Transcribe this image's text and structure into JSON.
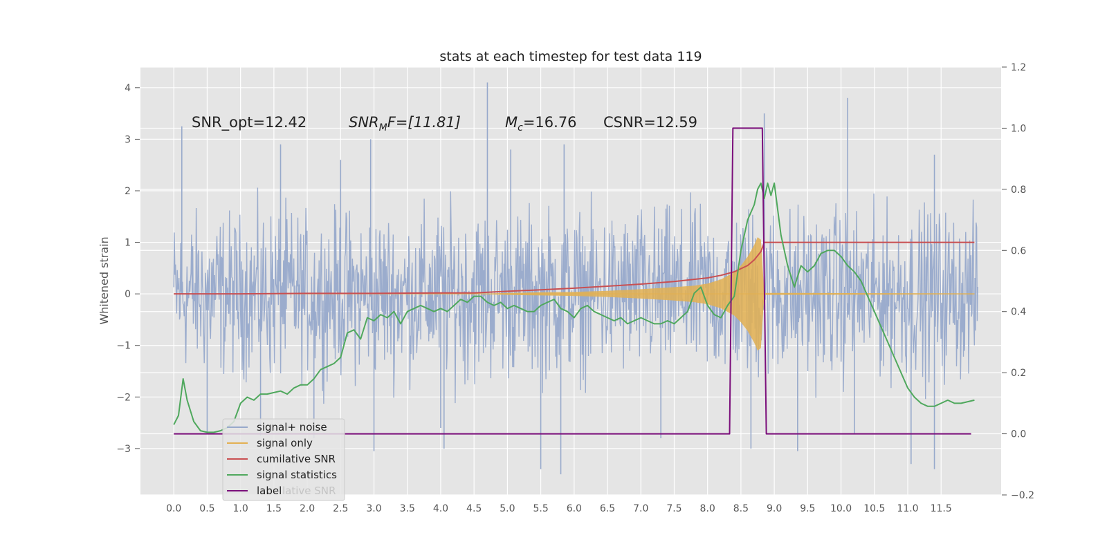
{
  "chart_data": {
    "type": "line",
    "title": "stats at each timestep for test data 119",
    "ylabel": "Whitened strain",
    "xlabel": "",
    "xlim": [
      -0.5,
      12.4
    ],
    "ylim": [
      -3.9,
      4.4
    ],
    "y2lim": [
      -0.2,
      1.2
    ],
    "grid": true,
    "x_ticks": [
      "0.0",
      "0.5",
      "1.0",
      "1.5",
      "2.0",
      "2.5",
      "3.0",
      "3.5",
      "4.0",
      "4.5",
      "5.0",
      "5.5",
      "6.0",
      "6.5",
      "7.0",
      "7.5",
      "8.0",
      "8.5",
      "9.0",
      "9.5",
      "10.0",
      "10.5",
      "11.0",
      "11.5"
    ],
    "y_ticks": [
      "4",
      "3",
      "2",
      "1",
      "0",
      "−1",
      "−2",
      "−3"
    ],
    "y2_ticks": [
      "1.2",
      "1.0",
      "0.8",
      "0.6",
      "0.4",
      "0.2",
      "0.0",
      "−0.2"
    ],
    "annotations": {
      "snr_opt": "SNR_opt=12.42",
      "snr_mf_main": "SNR",
      "snr_mf_sub": "M",
      "snr_mf_rest": "F=[11.81]",
      "mc_main": "M",
      "mc_sub": "c",
      "mc_rest": "=16.76",
      "csnr": "CSNR=12.59"
    },
    "legend": {
      "placement": "lower-left",
      "entries": [
        "signal+ noise",
        "signal only",
        "cumilative SNR",
        "signal statistics",
        "label"
      ],
      "ghost_text": "lative SNR"
    },
    "colors": {
      "noise": "#97a9cb",
      "signal": "#e3b051",
      "cumulative_snr": "#c94f51",
      "statistics": "#4fa85d",
      "label": "#7b0f7b",
      "axes_bg": "#e5e5e5",
      "grid": "#ffffff"
    },
    "series": [
      {
        "name": "signal+ noise",
        "axis": "left",
        "description_only": "dense whitened noise between about -2.5 and 2.5 with spikes up to 4.1 and down to -3.4",
        "envelope_upper": [
          [
            0,
            2.1
          ],
          [
            0.5,
            2.3
          ],
          [
            1,
            2.2
          ],
          [
            1.5,
            2.4
          ],
          [
            2,
            2.2
          ],
          [
            2.5,
            2.3
          ],
          [
            3,
            2.4
          ],
          [
            3.5,
            2.3
          ],
          [
            4,
            2.4
          ],
          [
            4.5,
            2.5
          ],
          [
            5,
            2.3
          ],
          [
            5.5,
            2.4
          ],
          [
            6,
            2.3
          ],
          [
            6.5,
            2.3
          ],
          [
            7,
            2.4
          ],
          [
            7.5,
            2.3
          ],
          [
            8,
            2.4
          ],
          [
            8.5,
            2.4
          ],
          [
            9,
            2.5
          ],
          [
            9.5,
            2.4
          ],
          [
            10,
            2.4
          ],
          [
            10.5,
            2.3
          ],
          [
            11,
            2.4
          ],
          [
            11.5,
            2.4
          ],
          [
            12,
            2.2
          ]
        ],
        "spikes": [
          [
            0.12,
            3.25
          ],
          [
            1.6,
            2.9
          ],
          [
            2.5,
            2.6
          ],
          [
            2.95,
            3.0
          ],
          [
            4.7,
            4.1
          ],
          [
            5.05,
            2.8
          ],
          [
            5.85,
            2.9
          ],
          [
            8.85,
            3.5
          ],
          [
            10.1,
            3.8
          ],
          [
            11.4,
            2.7
          ],
          [
            0.5,
            -2.7
          ],
          [
            2.1,
            -2.8
          ],
          [
            3.0,
            -3.05
          ],
          [
            4.05,
            -3.0
          ],
          [
            4.0,
            -2.6
          ],
          [
            5.5,
            -3.4
          ],
          [
            5.8,
            -3.5
          ],
          [
            8.65,
            -3.0
          ],
          [
            9.35,
            -3.05
          ],
          [
            10.2,
            -2.7
          ],
          [
            11.05,
            -3.3
          ],
          [
            11.4,
            -3.4
          ],
          [
            1.3,
            -2.75
          ],
          [
            7.3,
            -2.8
          ]
        ]
      },
      {
        "name": "signal only",
        "axis": "left",
        "envelope": [
          [
            0,
            0
          ],
          [
            4.5,
            0
          ],
          [
            5,
            0.02
          ],
          [
            5.5,
            0.03
          ],
          [
            6,
            0.04
          ],
          [
            6.5,
            0.06
          ],
          [
            7,
            0.09
          ],
          [
            7.5,
            0.13
          ],
          [
            7.8,
            0.16
          ],
          [
            8.0,
            0.2
          ],
          [
            8.2,
            0.28
          ],
          [
            8.4,
            0.42
          ],
          [
            8.5,
            0.55
          ],
          [
            8.6,
            0.72
          ],
          [
            8.7,
            0.95
          ],
          [
            8.75,
            1.1
          ],
          [
            8.8,
            1.05
          ],
          [
            8.82,
            0.6
          ],
          [
            8.85,
            0.02
          ],
          [
            12,
            0.01
          ]
        ]
      },
      {
        "name": "cumilative SNR",
        "axis": "left",
        "x": [
          0,
          1,
          2,
          3,
          4,
          4.5,
          5,
          5.5,
          6,
          6.5,
          7,
          7.5,
          8,
          8.2,
          8.4,
          8.5,
          8.6,
          8.7,
          8.8,
          8.85,
          9.0,
          10,
          11,
          12
        ],
        "y": [
          0,
          0,
          0.01,
          0.01,
          0.02,
          0.02,
          0.05,
          0.08,
          0.11,
          0.15,
          0.19,
          0.24,
          0.31,
          0.36,
          0.43,
          0.49,
          0.55,
          0.66,
          0.82,
          1.0,
          1.0,
          1.0,
          1.0,
          1.0
        ]
      },
      {
        "name": "signal statistics",
        "axis": "right",
        "x": [
          0,
          0.07,
          0.14,
          0.2,
          0.3,
          0.4,
          0.5,
          0.6,
          0.7,
          0.8,
          0.9,
          1.0,
          1.1,
          1.2,
          1.3,
          1.4,
          1.5,
          1.6,
          1.7,
          1.8,
          1.9,
          2.0,
          2.1,
          2.2,
          2.3,
          2.4,
          2.5,
          2.6,
          2.7,
          2.8,
          2.9,
          3.0,
          3.1,
          3.2,
          3.3,
          3.4,
          3.5,
          3.6,
          3.7,
          3.8,
          3.9,
          4.0,
          4.1,
          4.2,
          4.3,
          4.4,
          4.5,
          4.6,
          4.7,
          4.8,
          4.9,
          5.0,
          5.1,
          5.2,
          5.3,
          5.4,
          5.5,
          5.6,
          5.7,
          5.8,
          5.9,
          6.0,
          6.1,
          6.2,
          6.3,
          6.4,
          6.5,
          6.6,
          6.7,
          6.8,
          6.9,
          7.0,
          7.1,
          7.2,
          7.3,
          7.4,
          7.5,
          7.6,
          7.7,
          7.8,
          7.9,
          8.0,
          8.1,
          8.2,
          8.3,
          8.4,
          8.5,
          8.6,
          8.7,
          8.75,
          8.8,
          8.85,
          8.9,
          8.95,
          9.0,
          9.1,
          9.2,
          9.3,
          9.4,
          9.5,
          9.6,
          9.7,
          9.8,
          9.9,
          10.0,
          10.1,
          10.2,
          10.3,
          10.4,
          10.5,
          10.6,
          10.7,
          10.8,
          10.9,
          11.0,
          11.1,
          11.2,
          11.3,
          11.4,
          11.5,
          11.6,
          11.7,
          11.8,
          11.9,
          12.0
        ],
        "y": [
          0.03,
          0.06,
          0.18,
          0.11,
          0.04,
          0.01,
          0.005,
          0.005,
          0.01,
          0.02,
          0.04,
          0.1,
          0.12,
          0.11,
          0.13,
          0.13,
          0.135,
          0.14,
          0.13,
          0.15,
          0.16,
          0.16,
          0.18,
          0.21,
          0.22,
          0.23,
          0.25,
          0.33,
          0.34,
          0.31,
          0.38,
          0.37,
          0.39,
          0.38,
          0.4,
          0.36,
          0.4,
          0.41,
          0.42,
          0.41,
          0.4,
          0.41,
          0.4,
          0.42,
          0.44,
          0.43,
          0.45,
          0.45,
          0.43,
          0.42,
          0.43,
          0.41,
          0.42,
          0.41,
          0.4,
          0.4,
          0.42,
          0.43,
          0.44,
          0.41,
          0.4,
          0.38,
          0.41,
          0.42,
          0.4,
          0.39,
          0.38,
          0.37,
          0.38,
          0.36,
          0.37,
          0.38,
          0.37,
          0.36,
          0.36,
          0.37,
          0.36,
          0.38,
          0.4,
          0.46,
          0.48,
          0.42,
          0.39,
          0.38,
          0.42,
          0.45,
          0.6,
          0.7,
          0.75,
          0.8,
          0.82,
          0.77,
          0.82,
          0.78,
          0.82,
          0.65,
          0.55,
          0.48,
          0.55,
          0.53,
          0.55,
          0.59,
          0.6,
          0.6,
          0.58,
          0.55,
          0.53,
          0.5,
          0.45,
          0.4,
          0.35,
          0.3,
          0.25,
          0.2,
          0.15,
          0.12,
          0.1,
          0.09,
          0.09,
          0.1,
          0.11,
          0.1,
          0.1,
          0.105,
          0.11
        ]
      },
      {
        "name": "label",
        "axis": "right",
        "x": [
          0,
          8.33,
          8.38,
          8.82,
          8.88,
          11.95
        ],
        "y": [
          0,
          0,
          1,
          1,
          0,
          0
        ]
      }
    ]
  }
}
